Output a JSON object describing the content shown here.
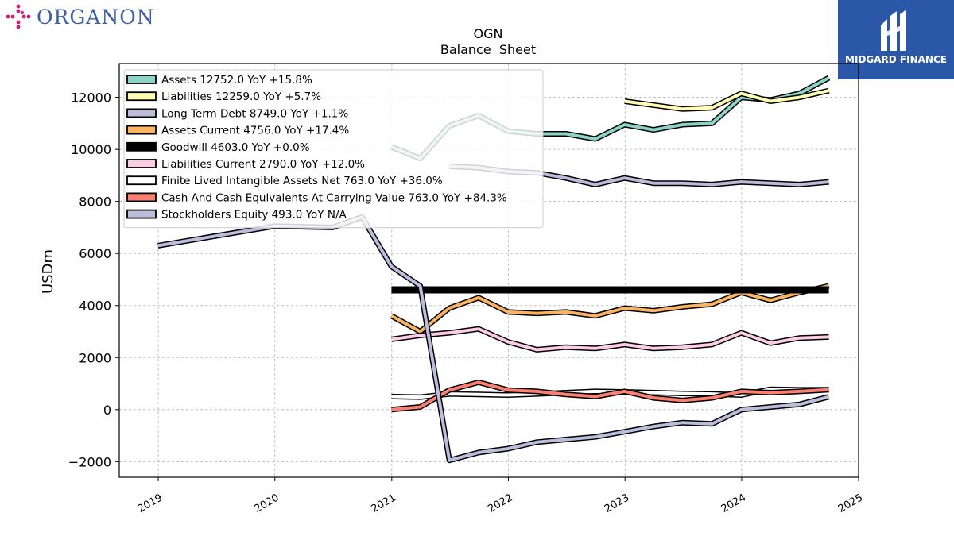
{
  "header": {
    "company_logo_text": "ORGANON",
    "brand_name": "MIDGARD FINANCE"
  },
  "colors": {
    "organon_accent": "#d8197a",
    "organon_text": "#3d5fa3",
    "brand_bg": "#2b57a8"
  },
  "chart_data": {
    "type": "line",
    "title": "OGN",
    "subtitle": "Balance  Sheet",
    "xlabel": "",
    "ylabel": "USDm",
    "x_ticks": [
      "2019",
      "2020",
      "2021",
      "2022",
      "2023",
      "2024",
      "2025"
    ],
    "y_ticks": [
      -2000,
      0,
      2000,
      4000,
      6000,
      8000,
      10000,
      12000
    ],
    "xlim": [
      "2018-09-01",
      "2025-01-01"
    ],
    "ylim": [
      -2600,
      13300
    ],
    "grid": true,
    "legend_position": "top-left",
    "series": [
      {
        "name": "Assets  12752.0 YoY +15.8%",
        "color": "#8dd3c7",
        "dates": [
          "2020-12-31",
          "2021-03-31",
          "2021-06-30",
          "2021-09-30",
          "2021-12-31",
          "2022-03-31",
          "2022-06-30",
          "2022-09-30",
          "2022-12-31",
          "2023-03-31",
          "2023-06-30",
          "2023-09-30",
          "2023-12-31",
          "2024-03-31",
          "2024-06-30",
          "2024-09-30"
        ],
        "values": [
          10100,
          9650,
          10900,
          11300,
          10700,
          10600,
          10600,
          10400,
          10950,
          10750,
          10950,
          11000,
          12000,
          11900,
          12150,
          12752
        ]
      },
      {
        "name": "Liabilities  12259.0 YoY +5.7%",
        "color": "#ffffb3",
        "dates": [
          "2022-12-31",
          "2023-03-31",
          "2023-06-30",
          "2023-09-30",
          "2023-12-31",
          "2024-03-31",
          "2024-06-30",
          "2024-09-30"
        ],
        "values": [
          11850,
          11700,
          11550,
          11600,
          12150,
          11850,
          12000,
          12259
        ]
      },
      {
        "name": "Long Term Debt  8749.0 YoY +1.1%",
        "color": "#bebada",
        "dates": [
          "2021-06-30",
          "2021-09-30",
          "2021-12-31",
          "2022-03-31",
          "2022-06-30",
          "2022-09-30",
          "2022-12-31",
          "2023-03-31",
          "2023-06-30",
          "2023-09-30",
          "2023-12-31",
          "2024-03-31",
          "2024-06-30",
          "2024-09-30"
        ],
        "values": [
          9350,
          9300,
          9150,
          9100,
          8900,
          8650,
          8900,
          8700,
          8700,
          8650,
          8750,
          8700,
          8650,
          8749
        ]
      },
      {
        "name": "Assets Current  4756.0 YoY +17.4%",
        "color": "#fdb462",
        "dates": [
          "2020-12-31",
          "2021-03-31",
          "2021-06-30",
          "2021-09-30",
          "2021-12-31",
          "2022-03-31",
          "2022-06-30",
          "2022-09-30",
          "2022-12-31",
          "2023-03-31",
          "2023-06-30",
          "2023-09-30",
          "2023-12-31",
          "2024-03-31",
          "2024-06-30",
          "2024-09-30"
        ],
        "values": [
          3600,
          3000,
          3900,
          4300,
          3750,
          3700,
          3750,
          3600,
          3900,
          3800,
          3950,
          4050,
          4500,
          4200,
          4500,
          4756
        ]
      },
      {
        "name": "Goodwill  4603.0 YoY +0.0%",
        "color": "#000000",
        "dates": [
          "2020-12-31",
          "2024-09-30"
        ],
        "values": [
          4603,
          4603
        ]
      },
      {
        "name": "Liabilities Current  2790.0 YoY +12.0%",
        "color": "#fccde5",
        "dates": [
          "2020-12-31",
          "2021-03-31",
          "2021-06-30",
          "2021-09-30",
          "2021-12-31",
          "2022-03-31",
          "2022-06-30",
          "2022-09-30",
          "2022-12-31",
          "2023-03-31",
          "2023-06-30",
          "2023-09-30",
          "2023-12-31",
          "2024-03-31",
          "2024-06-30",
          "2024-09-30"
        ],
        "values": [
          2700,
          2850,
          2950,
          3100,
          2600,
          2300,
          2400,
          2350,
          2500,
          2350,
          2400,
          2500,
          2950,
          2550,
          2750,
          2790
        ]
      },
      {
        "name": "Finite Lived Intangible Assets Net  763.0 YoY +36.0%",
        "color": "#ffffff",
        "dates": [
          "2020-12-31",
          "2021-03-31",
          "2021-06-30",
          "2021-09-30",
          "2021-12-31",
          "2022-03-31",
          "2022-06-30",
          "2022-09-30",
          "2022-12-31",
          "2023-03-31",
          "2023-06-30",
          "2023-09-30",
          "2023-12-31",
          "2024-03-31",
          "2024-06-30",
          "2024-09-30"
        ],
        "values": [
          500,
          480,
          600,
          580,
          560,
          600,
          650,
          700,
          680,
          650,
          620,
          600,
          560,
          780,
          760,
          763
        ]
      },
      {
        "name": "Cash And Cash Equivalents At Carrying Value  763.0 YoY +84.3%",
        "color": "#fb8072",
        "dates": [
          "2020-12-31",
          "2021-03-31",
          "2021-06-30",
          "2021-09-30",
          "2021-12-31",
          "2022-03-31",
          "2022-06-30",
          "2022-09-30",
          "2022-12-31",
          "2023-03-31",
          "2023-06-30",
          "2023-09-30",
          "2023-12-31",
          "2024-03-31",
          "2024-06-30",
          "2024-09-30"
        ],
        "values": [
          0,
          100,
          750,
          1050,
          750,
          700,
          580,
          500,
          700,
          450,
          350,
          450,
          700,
          650,
          700,
          763
        ]
      },
      {
        "name": "Stockholders Equity  493.0 YoY N/A",
        "color": "#bcbddc",
        "dates": [
          "2018-12-31",
          "2019-12-31",
          "2020-06-30",
          "2020-09-30",
          "2020-12-31",
          "2021-03-31",
          "2021-06-30",
          "2021-09-30",
          "2021-12-31",
          "2022-03-31",
          "2022-06-30",
          "2022-09-30",
          "2022-12-31",
          "2023-03-31",
          "2023-06-30",
          "2023-09-30",
          "2023-12-31",
          "2024-03-31",
          "2024-06-30",
          "2024-09-30"
        ],
        "values": [
          6300,
          7050,
          7000,
          7400,
          5500,
          4750,
          -1950,
          -1650,
          -1500,
          -1250,
          -1150,
          -1050,
          -850,
          -650,
          -500,
          -550,
          0,
          100,
          200,
          493
        ]
      }
    ]
  }
}
